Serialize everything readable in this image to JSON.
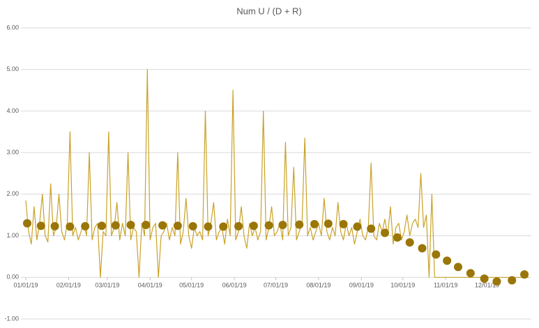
{
  "chart_data": {
    "type": "line",
    "title": "Num U / (D  + R)",
    "ylim": [
      -1,
      6
    ],
    "yticks": [
      {
        "value": -1,
        "label": "-1.00"
      },
      {
        "value": 0,
        "label": "0.00"
      },
      {
        "value": 1,
        "label": "1.00"
      },
      {
        "value": 2,
        "label": "2.00"
      },
      {
        "value": 3,
        "label": "3.00"
      },
      {
        "value": 4,
        "label": "4.00"
      },
      {
        "value": 5,
        "label": "5.00"
      },
      {
        "value": 6,
        "label": "6.00"
      }
    ],
    "xlim": [
      0,
      364
    ],
    "xticks": [
      {
        "value": 0,
        "label": "01/01/19"
      },
      {
        "value": 31,
        "label": "02/01/19"
      },
      {
        "value": 59,
        "label": "03/01/19"
      },
      {
        "value": 90,
        "label": "04/01/19"
      },
      {
        "value": 120,
        "label": "05/01/19"
      },
      {
        "value": 151,
        "label": "06/01/19"
      },
      {
        "value": 181,
        "label": "07/01/19"
      },
      {
        "value": 212,
        "label": "08/01/19"
      },
      {
        "value": 243,
        "label": "09/01/19"
      },
      {
        "value": 273,
        "label": "10/01/19"
      },
      {
        "value": 304,
        "label": "11/01/19"
      },
      {
        "value": 334,
        "label": "12/01/19"
      }
    ],
    "grid": true,
    "series": [
      {
        "type": "line",
        "color": "#c9a227",
        "x": [
          0,
          2,
          4,
          6,
          8,
          10,
          12,
          14,
          16,
          18,
          20,
          22,
          24,
          26,
          28,
          30,
          32,
          34,
          36,
          38,
          40,
          42,
          44,
          46,
          48,
          50,
          52,
          54,
          56,
          58,
          60,
          62,
          64,
          66,
          68,
          70,
          72,
          74,
          76,
          78,
          80,
          82,
          84,
          86,
          88,
          90,
          92,
          94,
          96,
          98,
          100,
          102,
          104,
          106,
          108,
          110,
          112,
          114,
          116,
          118,
          120,
          122,
          124,
          126,
          128,
          130,
          132,
          134,
          136,
          138,
          140,
          142,
          144,
          146,
          148,
          150,
          152,
          154,
          156,
          158,
          160,
          162,
          164,
          166,
          168,
          170,
          172,
          174,
          176,
          178,
          180,
          182,
          184,
          186,
          188,
          190,
          192,
          194,
          196,
          198,
          200,
          202,
          204,
          206,
          208,
          210,
          212,
          214,
          216,
          218,
          220,
          222,
          224,
          226,
          228,
          230,
          232,
          234,
          236,
          238,
          240,
          242,
          244,
          246,
          248,
          250,
          252,
          254,
          256,
          258,
          260,
          262,
          264,
          266,
          268,
          270,
          272,
          274,
          276,
          278,
          280,
          282,
          284,
          286,
          288,
          290,
          292,
          294,
          296,
          298,
          300,
          302,
          304,
          306,
          308,
          310,
          312,
          314,
          316,
          318,
          320,
          322,
          324,
          326,
          328,
          330,
          332,
          334,
          336,
          338,
          340,
          342,
          344,
          346,
          348,
          350,
          352,
          354,
          356,
          358,
          360,
          362,
          364
        ],
        "values": [
          1.85,
          1.1,
          0.8,
          1.7,
          0.9,
          1.3,
          2.0,
          1.0,
          0.85,
          2.25,
          1.0,
          1.2,
          2.0,
          1.1,
          0.9,
          1.3,
          3.5,
          1.0,
          1.2,
          0.9,
          1.1,
          1.3,
          1.0,
          3.0,
          0.9,
          1.2,
          1.3,
          0,
          1.1,
          1.0,
          3.5,
          1.0,
          1.2,
          1.8,
          0.9,
          1.3,
          1.0,
          3.0,
          0.9,
          1.2,
          1.1,
          0,
          1.3,
          1.0,
          5.0,
          0.9,
          1.2,
          1.3,
          0,
          1.0,
          1.1,
          1.3,
          0.9,
          1.2,
          1.0,
          3.0,
          0.8,
          1.1,
          1.9,
          1.0,
          0.7,
          1.2,
          1.0,
          1.1,
          0.9,
          4.0,
          1.0,
          1.3,
          1.8,
          0.9,
          1.1,
          1.2,
          0.8,
          1.4,
          1.0,
          4.5,
          0.9,
          1.1,
          1.7,
          1.0,
          0.7,
          1.3,
          1.0,
          1.2,
          0.9,
          1.1,
          4.0,
          0.9,
          1.2,
          1.7,
          1.0,
          1.1,
          1.3,
          0.9,
          3.25,
          1.0,
          1.2,
          2.65,
          0.9,
          1.1,
          1.3,
          3.35,
          1.0,
          1.2,
          0.9,
          1.1,
          1.3,
          1.0,
          1.9,
          1.1,
          0.9,
          1.2,
          1.0,
          1.8,
          1.1,
          0.9,
          1.3,
          1.0,
          1.2,
          0.8,
          1.1,
          1.4,
          1.0,
          0.9,
          1.2,
          2.75,
          1.0,
          0.9,
          1.3,
          1.1,
          1.4,
          1.0,
          1.7,
          0.8,
          1.2,
          1.3,
          0.9,
          1.1,
          1.5,
          1.0,
          1.3,
          1.4,
          1.2,
          2.5,
          1.2,
          1.5,
          0,
          2.0,
          0,
          0,
          0,
          0,
          0,
          0,
          0,
          0,
          0,
          0,
          0,
          0,
          0,
          0,
          0,
          0,
          0,
          0,
          0,
          0,
          0,
          0,
          0,
          0,
          0,
          0,
          0,
          0,
          0,
          0,
          0,
          0,
          0,
          0,
          0
        ]
      },
      {
        "type": "scatter",
        "color": "#9a7608",
        "x": [
          1,
          11,
          21,
          32,
          43,
          55,
          65,
          76,
          87,
          99,
          110,
          121,
          132,
          143,
          154,
          165,
          176,
          186,
          198,
          209,
          219,
          230,
          240,
          250,
          260,
          269,
          278,
          287,
          297,
          305,
          313,
          322,
          332,
          341,
          352,
          361
        ],
        "values": [
          1.3,
          1.24,
          1.23,
          1.22,
          1.23,
          1.24,
          1.25,
          1.26,
          1.26,
          1.25,
          1.24,
          1.23,
          1.22,
          1.22,
          1.23,
          1.24,
          1.25,
          1.26,
          1.27,
          1.28,
          1.29,
          1.28,
          1.22,
          1.17,
          1.07,
          0.96,
          0.84,
          0.7,
          0.55,
          0.4,
          0.25,
          0.1,
          -0.03,
          -0.1,
          -0.07,
          0.07
        ]
      }
    ]
  }
}
